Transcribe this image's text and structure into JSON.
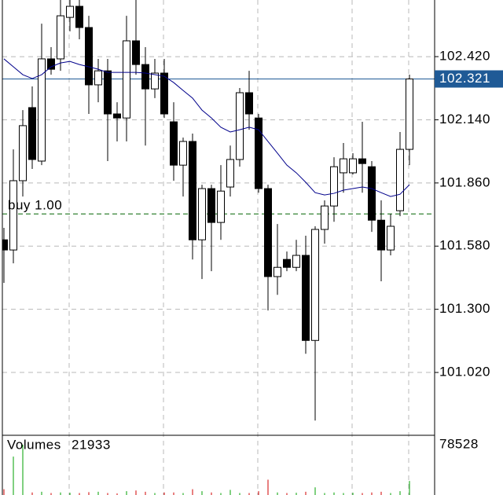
{
  "chart_data": {
    "type": "candlestick",
    "ylim": [
      100.745,
      102.671
    ],
    "yticks": [
      {
        "value": 102.42,
        "label": "102.420"
      },
      {
        "value": 102.14,
        "label": "102.140"
      },
      {
        "value": 101.86,
        "label": "101.860"
      },
      {
        "value": 101.58,
        "label": "101.580"
      },
      {
        "value": 101.3,
        "label": "101.300"
      },
      {
        "value": 101.02,
        "label": "101.020"
      }
    ],
    "grid": true,
    "up_color": "#ffffff",
    "down_color": "#000000",
    "ohlc": [
      [
        101.608,
        101.661,
        101.417,
        101.563
      ],
      [
        101.563,
        102.009,
        101.504,
        101.87
      ],
      [
        101.87,
        102.183,
        101.8,
        102.114
      ],
      [
        102.194,
        102.288,
        101.922,
        101.964
      ],
      [
        101.957,
        102.566,
        101.939,
        102.41
      ],
      [
        102.41,
        102.462,
        102.34,
        102.364
      ],
      [
        102.41,
        102.671,
        102.357,
        102.601
      ],
      [
        102.594,
        102.671,
        102.532,
        102.643
      ],
      [
        102.643,
        102.671,
        102.497,
        102.549
      ],
      [
        102.549,
        102.601,
        102.166,
        102.295
      ],
      [
        102.295,
        102.41,
        102.218,
        102.357
      ],
      [
        102.357,
        102.41,
        101.957,
        102.166
      ],
      [
        102.166,
        102.218,
        102.044,
        102.148
      ],
      [
        102.148,
        102.601,
        102.044,
        102.49
      ],
      [
        102.49,
        102.671,
        102.34,
        102.385
      ],
      [
        102.385,
        102.462,
        102.026,
        102.277
      ],
      [
        102.277,
        102.41,
        102.236,
        102.347
      ],
      [
        102.347,
        102.41,
        102.148,
        102.166
      ],
      [
        102.131,
        102.218,
        101.87,
        101.939
      ],
      [
        101.939,
        102.061,
        101.8,
        102.044
      ],
      [
        102.044,
        102.079,
        101.521,
        101.608
      ],
      [
        101.608,
        101.852,
        101.434,
        101.835
      ],
      [
        101.835,
        101.852,
        101.469,
        101.685
      ],
      [
        101.685,
        101.939,
        101.608,
        101.824
      ],
      [
        101.842,
        102.026,
        101.8,
        101.964
      ],
      [
        101.964,
        102.281,
        101.932,
        102.26
      ],
      [
        102.26,
        102.357,
        102.096,
        102.166
      ],
      [
        102.148,
        102.166,
        101.817,
        101.835
      ],
      [
        101.835,
        101.852,
        101.295,
        101.445
      ],
      [
        101.445,
        101.678,
        101.364,
        101.486
      ],
      [
        101.521,
        101.556,
        101.469,
        101.486
      ],
      [
        101.486,
        101.608,
        101.469,
        101.539
      ],
      [
        101.539,
        101.626,
        101.103,
        101.162
      ],
      [
        101.162,
        101.668,
        100.807,
        101.654
      ],
      [
        101.654,
        101.783,
        101.591,
        101.758
      ],
      [
        101.758,
        101.974,
        101.688,
        101.932
      ],
      [
        101.905,
        102.037,
        101.817,
        101.967
      ],
      [
        101.905,
        101.992,
        101.898,
        101.967
      ],
      [
        101.967,
        102.131,
        101.817,
        101.946
      ],
      [
        101.932,
        101.957,
        101.643,
        101.695
      ],
      [
        101.695,
        101.783,
        101.424,
        101.563
      ],
      [
        101.563,
        101.723,
        101.539,
        101.668
      ],
      [
        101.737,
        102.086,
        101.713,
        102.009
      ],
      [
        102.009,
        102.34,
        101.939,
        102.321
      ]
    ],
    "moving_average": {
      "color": "#00008b",
      "values": [
        102.41,
        102.375,
        102.34,
        102.323,
        102.34,
        102.375,
        102.392,
        102.399,
        102.385,
        102.375,
        102.364,
        102.35,
        102.35,
        102.35,
        102.35,
        102.347,
        102.34,
        102.333,
        102.305,
        102.27,
        102.236,
        102.183,
        102.148,
        102.107,
        102.086,
        102.096,
        102.107,
        102.096,
        102.044,
        101.992,
        101.939,
        101.905,
        101.863,
        101.817,
        101.807,
        101.814,
        101.828,
        101.835,
        101.842,
        101.835,
        101.817,
        101.8,
        101.81,
        101.852
      ]
    },
    "last_price": {
      "value": 102.321,
      "color": "#1f5a96"
    },
    "order": {
      "label": "buy 1.00",
      "price": 101.723,
      "color": "#006400"
    },
    "volumes": {
      "title": "Volumes",
      "ylim": [
        0,
        78528
      ],
      "yticks": [
        78528
      ],
      "up_color": "#00a000",
      "down_color": "#d00000",
      "values": [
        9000,
        60000,
        78528,
        4000,
        5000,
        3000,
        4000,
        3500,
        3000,
        4500,
        5000,
        3000,
        2500,
        6000,
        7000,
        5000,
        3000,
        4000,
        4000,
        3000,
        9000,
        6000,
        4000,
        3000,
        8000,
        3000,
        3000,
        6000,
        24000,
        4000,
        3000,
        3500,
        5000,
        12000,
        3000,
        4000,
        3000,
        3500,
        3000,
        4000,
        5000,
        3000,
        6000,
        21933
      ]
    }
  }
}
